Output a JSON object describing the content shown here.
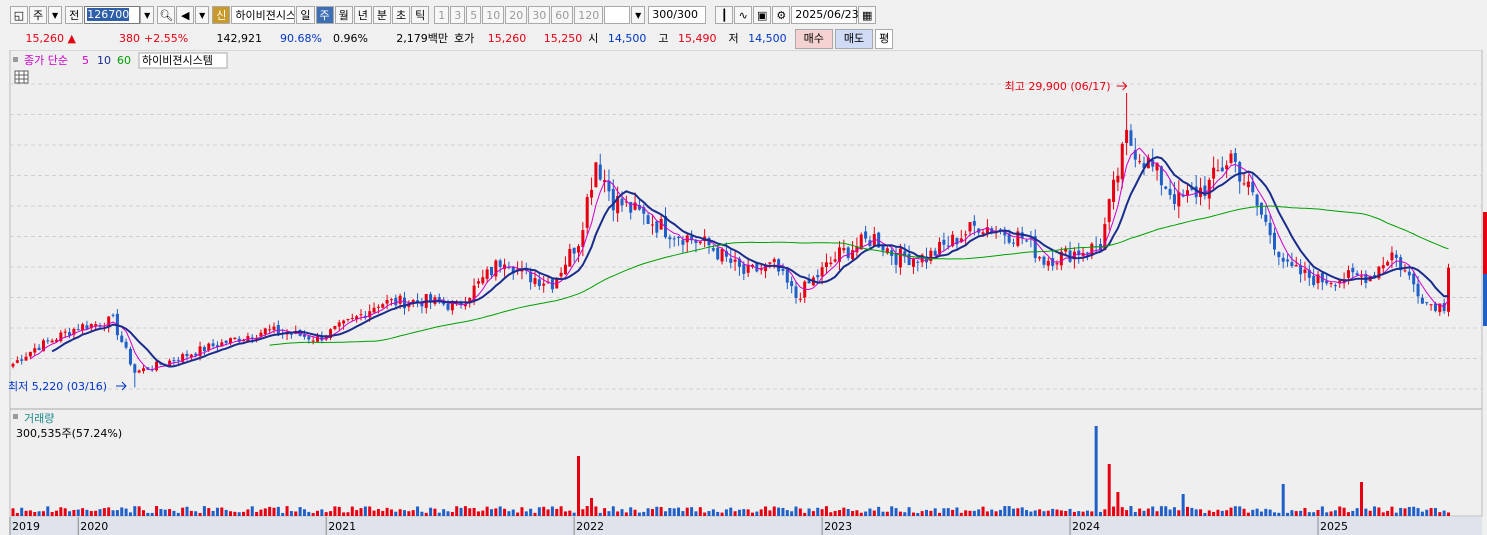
{
  "toolbar": {
    "period": "주",
    "prev_label": "전",
    "code": "126700",
    "badge": "신",
    "name": "하이비젼시스템",
    "tabs": [
      "일",
      "주",
      "월",
      "년",
      "분",
      "초",
      "틱"
    ],
    "active_tab": 1,
    "nums": [
      "1",
      "3",
      "5",
      "10",
      "20",
      "30",
      "60",
      "120"
    ],
    "count": "300",
    "count_total": "/300",
    "date": "2025/06/23"
  },
  "quote": {
    "price": "15,260",
    "change": "380",
    "change_pct": "+2.55%",
    "volume": "142,921",
    "vol_ratio": "90.68%",
    "turnover": "0.96%",
    "amount": "2,179백만",
    "hoga_label": "호가",
    "ask": "15,260",
    "bid": "15,250",
    "open_label": "시",
    "open": "14,500",
    "high_label": "고",
    "high": "15,490",
    "low_label": "저",
    "low": "14,500",
    "buy_label": "매수",
    "sell_label": "매도",
    "avg_label": "평"
  },
  "colors": {
    "up": "#e60012",
    "down": "#1f5fc8",
    "ma5": "#cc00cc",
    "ma10": "#1a2c8c",
    "ma60": "#00a000",
    "grid": "#d0d0d0",
    "bg": "#efefef"
  },
  "chart_data": {
    "type": "candlestick",
    "series_labels": [
      "종가 단순",
      "5",
      "10",
      "60"
    ],
    "stock_label": "하이비젼시스템",
    "volume_title": "거래량",
    "volume_readout": "300,535주(57.24%)",
    "max_annotation": "최고 29,900 (06/17)",
    "min_annotation": "최저 5,220 (03/16)",
    "years": [
      "2019",
      "2020",
      "2021",
      "2022",
      "2023",
      "2024",
      "2025"
    ],
    "y_range": [
      4000,
      32000
    ],
    "weeks": 330,
    "anchors": [
      [
        0,
        7200
      ],
      [
        5,
        8500
      ],
      [
        15,
        10300
      ],
      [
        23,
        10800
      ],
      [
        28,
        6500
      ],
      [
        35,
        7300
      ],
      [
        45,
        8600
      ],
      [
        58,
        10000
      ],
      [
        63,
        9800
      ],
      [
        70,
        9300
      ],
      [
        78,
        10800
      ],
      [
        84,
        12300
      ],
      [
        95,
        12500
      ],
      [
        102,
        12000
      ],
      [
        110,
        15000
      ],
      [
        113,
        16200
      ],
      [
        117,
        14700
      ],
      [
        124,
        14000
      ],
      [
        130,
        17600
      ],
      [
        134,
        24300
      ],
      [
        138,
        21000
      ],
      [
        150,
        18500
      ],
      [
        160,
        17100
      ],
      [
        168,
        14800
      ],
      [
        175,
        15400
      ],
      [
        180,
        12800
      ],
      [
        190,
        16400
      ],
      [
        198,
        17800
      ],
      [
        203,
        16200
      ],
      [
        210,
        16100
      ],
      [
        222,
        18900
      ],
      [
        232,
        17800
      ],
      [
        237,
        15900
      ],
      [
        250,
        17100
      ],
      [
        252,
        20300
      ],
      [
        256,
        26100
      ],
      [
        261,
        24000
      ],
      [
        268,
        20800
      ],
      [
        275,
        22200
      ],
      [
        280,
        24700
      ],
      [
        286,
        20400
      ],
      [
        293,
        15200
      ],
      [
        300,
        14200
      ],
      [
        312,
        14600
      ],
      [
        317,
        16500
      ],
      [
        325,
        12300
      ],
      [
        330,
        12000
      ]
    ],
    "last_close": 15260,
    "max_value": 29900,
    "min_value": 5220,
    "volume_spikes": [
      [
        130,
        3.0
      ],
      [
        133,
        0.9
      ],
      [
        249,
        4.5
      ],
      [
        252,
        2.6
      ],
      [
        254,
        1.2
      ],
      [
        269,
        1.1
      ],
      [
        292,
        1.6
      ],
      [
        310,
        1.7
      ]
    ]
  }
}
